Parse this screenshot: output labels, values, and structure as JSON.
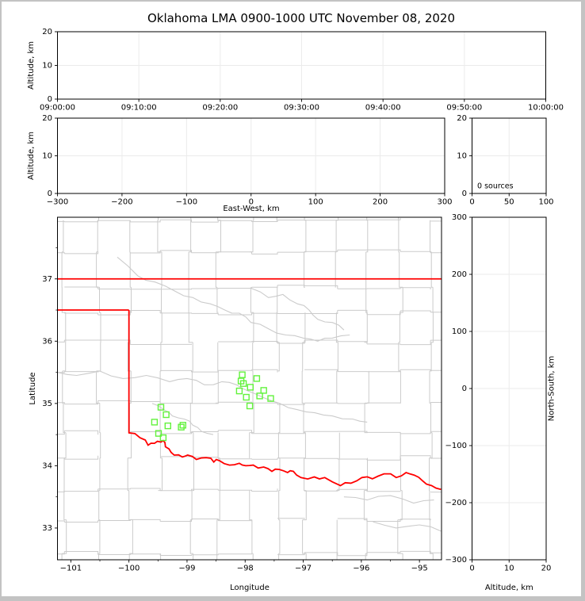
{
  "title": "Oklahoma LMA 0900-1000 UTC November 08, 2020",
  "colors": {
    "window_border": "#c3c3c3",
    "figure_background": "#ffffff",
    "frame": "#000000",
    "grid": "#ebebeb",
    "county_lines": "#cbcbcb",
    "rivers": "#cbcbcb",
    "state_border": "#ff0000",
    "source_marker": "#62f23c"
  },
  "chart_data": {
    "figure_title": "Oklahoma LMA 0900-1000 UTC November 08, 2020",
    "panels": [
      {
        "name": "altitude-vs-time",
        "type": "scatter",
        "xlabel": "",
        "ylabel": "Altitude, km",
        "xtick_labels": [
          "09:00:00",
          "09:10:00",
          "09:20:00",
          "09:30:00",
          "09:40:00",
          "09:50:00",
          "10:00:00"
        ],
        "ytick_labels": [
          "0",
          "10",
          "20"
        ],
        "ylim": [
          0,
          20
        ],
        "grid": true,
        "points": []
      },
      {
        "name": "altitude-vs-east-west",
        "type": "scatter",
        "xlabel": "East-West, km",
        "ylabel": "Altitude, km",
        "xtick_labels": [
          "−300",
          "−200",
          "−100",
          "0",
          "100",
          "200",
          "300"
        ],
        "xtick_values": [
          -300,
          -200,
          -100,
          0,
          100,
          200,
          300
        ],
        "ytick_labels": [
          "0",
          "10",
          "20"
        ],
        "xlim": [
          -300,
          300
        ],
        "ylim": [
          0,
          20
        ],
        "grid": true,
        "points": []
      },
      {
        "name": "source-count-histogram",
        "type": "scatter",
        "xlabel": "",
        "ylabel": "",
        "annotation": "0 sources",
        "xtick_labels": [
          "0",
          "50",
          "100"
        ],
        "xtick_values": [
          0,
          50,
          100
        ],
        "ytick_labels": [
          "0",
          "10",
          "20"
        ],
        "xlim": [
          0,
          100
        ],
        "ylim": [
          0,
          20
        ],
        "grid": true,
        "points": []
      },
      {
        "name": "plan-view-map",
        "type": "scatter",
        "xlabel": "Longitude",
        "ylabel": "Latitude",
        "xtick_labels": [
          "−101",
          "−100",
          "−99",
          "−98",
          "−97",
          "−96",
          "−95"
        ],
        "xtick_values": [
          -101,
          -100,
          -99,
          -98,
          -97,
          -96,
          -95
        ],
        "ytick_labels": [
          "33",
          "34",
          "35",
          "36",
          "37"
        ],
        "ytick_values": [
          33,
          34,
          35,
          36,
          37
        ],
        "xlim": [
          -101.23,
          -94.62
        ],
        "ylim": [
          32.49,
          37.99
        ],
        "marker": "open-square",
        "points": [
          [
            -98.05,
            35.46
          ],
          [
            -97.8,
            35.4
          ],
          [
            -98.07,
            35.36
          ],
          [
            -98.03,
            35.32
          ],
          [
            -97.91,
            35.26
          ],
          [
            -98.1,
            35.2
          ],
          [
            -97.68,
            35.21
          ],
          [
            -97.75,
            35.12
          ],
          [
            -97.98,
            35.1
          ],
          [
            -97.56,
            35.08
          ],
          [
            -97.92,
            34.96
          ],
          [
            -99.45,
            34.94
          ],
          [
            -99.36,
            34.82
          ],
          [
            -99.56,
            34.7
          ],
          [
            -99.33,
            34.64
          ],
          [
            -99.07,
            34.65
          ],
          [
            -99.1,
            34.62
          ],
          [
            -99.49,
            34.52
          ],
          [
            -99.41,
            34.45
          ]
        ]
      },
      {
        "name": "north-south-vs-altitude",
        "type": "scatter",
        "xlabel": "Altitude, km",
        "ylabel": "North-South, km",
        "xtick_labels": [
          "0",
          "10",
          "20"
        ],
        "xtick_values": [
          0,
          10,
          20
        ],
        "ytick_labels": [
          "−300",
          "−200",
          "−100",
          "0",
          "100",
          "200",
          "300"
        ],
        "ytick_values": [
          -300,
          -200,
          -100,
          0,
          100,
          200,
          300
        ],
        "xlim": [
          0,
          20
        ],
        "ylim": [
          -300,
          300
        ],
        "grid": true,
        "points": []
      }
    ]
  },
  "map_overlay": {
    "state_border": {
      "north_latitude": 37.0,
      "panhandle_south": [
        [
          -101.23,
          36.5
        ],
        [
          -100.0,
          36.5
        ]
      ],
      "west_meridian": [
        [
          -100.0,
          36.5
        ],
        [
          -100.0,
          34.53
        ]
      ],
      "red_river": [
        [
          -100.01,
          34.53
        ],
        [
          -99.81,
          34.45
        ],
        [
          -99.67,
          34.33
        ],
        [
          -99.56,
          34.36
        ],
        [
          -99.45,
          34.38
        ],
        [
          -99.38,
          34.37
        ],
        [
          -99.31,
          34.27
        ],
        [
          -99.22,
          34.17
        ],
        [
          -99.08,
          34.14
        ],
        [
          -98.99,
          34.17
        ],
        [
          -98.84,
          34.1
        ],
        [
          -98.67,
          34.13
        ],
        [
          -98.54,
          34.06
        ],
        [
          -98.44,
          34.08
        ],
        [
          -98.27,
          34.01
        ],
        [
          -98.1,
          34.04
        ],
        [
          -97.99,
          34.0
        ],
        [
          -97.86,
          34.01
        ],
        [
          -97.68,
          33.98
        ],
        [
          -97.54,
          33.91
        ],
        [
          -97.41,
          33.94
        ],
        [
          -97.27,
          33.89
        ],
        [
          -97.17,
          33.91
        ],
        [
          -97.04,
          33.81
        ],
        [
          -96.81,
          33.82
        ],
        [
          -96.63,
          33.81
        ],
        [
          -96.36,
          33.68
        ],
        [
          -96.18,
          33.72
        ],
        [
          -95.99,
          33.81
        ],
        [
          -95.81,
          33.79
        ],
        [
          -95.61,
          33.87
        ],
        [
          -95.4,
          33.81
        ],
        [
          -95.23,
          33.89
        ],
        [
          -95.09,
          33.85
        ],
        [
          -94.95,
          33.76
        ],
        [
          -94.79,
          33.68
        ],
        [
          -94.63,
          33.62
        ]
      ]
    },
    "rivers": [
      [
        [
          -100.2,
          37.35
        ],
        [
          -99.85,
          37.05
        ],
        [
          -99.55,
          36.95
        ],
        [
          -99.2,
          36.8
        ],
        [
          -98.9,
          36.7
        ],
        [
          -98.6,
          36.6
        ],
        [
          -98.35,
          36.5
        ],
        [
          -98.1,
          36.45
        ],
        [
          -97.9,
          36.3
        ],
        [
          -97.6,
          36.2
        ],
        [
          -97.3,
          36.1
        ],
        [
          -97.0,
          36.05
        ],
        [
          -96.75,
          36.0
        ],
        [
          -96.5,
          36.05
        ],
        [
          -96.2,
          36.1
        ]
      ],
      [
        [
          -97.9,
          36.85
        ],
        [
          -97.6,
          36.7
        ],
        [
          -97.35,
          36.75
        ],
        [
          -97.1,
          36.6
        ],
        [
          -96.9,
          36.5
        ],
        [
          -96.75,
          36.35
        ],
        [
          -96.5,
          36.3
        ],
        [
          -96.3,
          36.18
        ]
      ],
      [
        [
          -101.23,
          35.5
        ],
        [
          -100.9,
          35.45
        ],
        [
          -100.5,
          35.52
        ],
        [
          -100.1,
          35.4
        ],
        [
          -99.7,
          35.45
        ],
        [
          -99.3,
          35.35
        ],
        [
          -99.0,
          35.4
        ],
        [
          -98.7,
          35.3
        ],
        [
          -98.4,
          35.35
        ],
        [
          -98.15,
          35.3
        ],
        [
          -97.95,
          35.2
        ],
        [
          -97.7,
          35.1
        ],
        [
          -97.4,
          35.0
        ],
        [
          -97.1,
          34.9
        ],
        [
          -96.8,
          34.85
        ],
        [
          -96.5,
          34.8
        ],
        [
          -96.15,
          34.75
        ],
        [
          -95.9,
          34.7
        ]
      ],
      [
        [
          -99.6,
          35.0
        ],
        [
          -99.4,
          34.9
        ],
        [
          -99.25,
          34.8
        ],
        [
          -99.05,
          34.75
        ],
        [
          -98.9,
          34.65
        ],
        [
          -98.75,
          34.55
        ],
        [
          -98.55,
          34.5
        ]
      ],
      [
        [
          -96.3,
          33.5
        ],
        [
          -95.9,
          33.45
        ],
        [
          -95.5,
          33.52
        ],
        [
          -95.1,
          33.4
        ],
        [
          -94.75,
          33.45
        ]
      ],
      [
        [
          -95.8,
          33.1
        ],
        [
          -95.4,
          33.0
        ],
        [
          -95.0,
          33.05
        ],
        [
          -94.63,
          32.95
        ]
      ]
    ]
  }
}
